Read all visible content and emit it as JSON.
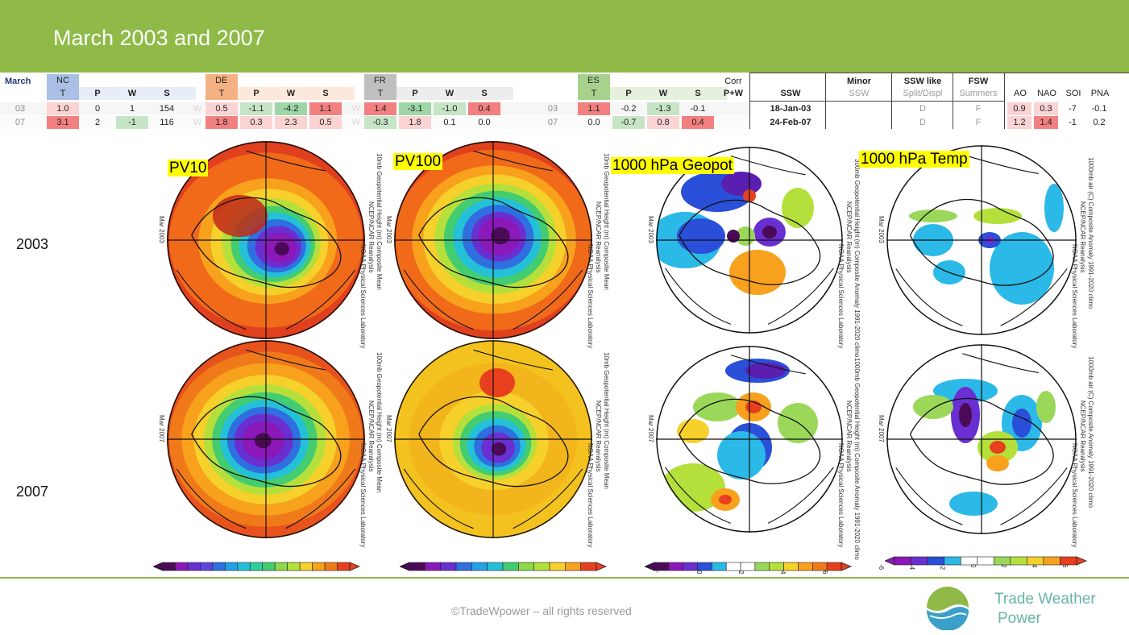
{
  "page": {
    "title": "March 2003 and 2007",
    "footer": "©TradeWpower – all rights reserved",
    "logo_line1": "Trade Weather",
    "logo_line2": "Power"
  },
  "table": {
    "month_label": "March",
    "nc": {
      "label": "NC",
      "cols": [
        "T",
        "P",
        "W",
        "S"
      ]
    },
    "de": {
      "label": "DE",
      "cols": [
        "T",
        "P",
        "W",
        "S"
      ]
    },
    "fr": {
      "label": "FR",
      "cols": [
        "T",
        "P",
        "W",
        "S"
      ]
    },
    "es": {
      "label": "ES",
      "cols": [
        "T",
        "P",
        "W",
        "S"
      ]
    },
    "w_marker": "W",
    "corr": "Corr",
    "pw": "P+W",
    "ssw_head": "SSW",
    "minor_head1": "Minor",
    "minor_head2": "SSW",
    "sswlike_head1": "SSW like",
    "sswlike_head2": "Split/Displ",
    "fsw_head1": "FSW",
    "fsw_head2": "Summers",
    "idx_cols": [
      "AO",
      "NAO",
      "SOI",
      "PNA"
    ],
    "rows": [
      {
        "year": "03",
        "nc": [
          "1.0",
          "0",
          "1",
          "154"
        ],
        "de": [
          "0.5",
          "-1.1",
          "-4.2",
          "1.1"
        ],
        "fr": [
          "1.4",
          "-3.1",
          "-1.0",
          "0.4"
        ],
        "es_year": "03",
        "es": [
          "1.1",
          "-0.2",
          "-1.3",
          "-0.1"
        ],
        "ssw": "18-Jan-03",
        "sswlike": "D",
        "fsw": "F",
        "idx": [
          "0.9",
          "0.3",
          "-7",
          "-0.1"
        ]
      },
      {
        "year": "07",
        "nc": [
          "3.1",
          "2",
          "-1",
          "116"
        ],
        "de": [
          "1.8",
          "0.3",
          "2.3",
          "0.5"
        ],
        "fr": [
          "-0.3",
          "1.8",
          "0.1",
          "0.0"
        ],
        "es_year": "07",
        "es": [
          "0.0",
          "-0.7",
          "0.8",
          "0.4"
        ],
        "ssw": "24-Feb-07",
        "sswlike": "D",
        "fsw": "F",
        "idx": [
          "1.2",
          "1.4",
          "-1",
          "0.2"
        ]
      }
    ]
  },
  "maps": {
    "titles": [
      "PV10",
      "PV100",
      "1000 hPa Geopot",
      "1000 hPa Temp"
    ],
    "years": [
      "2003",
      "2007"
    ],
    "date_2003": "Mar 2003",
    "date_2007": "Mar 2007",
    "source": "NCEP/NCAR Reanalysis",
    "lab": "NOAA Physical Sciences Laboratory",
    "pv10_var": "10mb Geopotential Height (m) Composite Mean",
    "pv10_var_2007": "100mb Geopotential Height (m) Composite Mean",
    "pv100_var": "10mb Geopotential Height (m) Composite Mean",
    "geo_var": "300mb Geopotential Height (m) Composite Anomaly 1991-2020 climo",
    "geo_var_2007": "1000mb Geopotential Height (m) Composite Anomaly 1991-2020 climo",
    "temp_var": "1000mb air (C) Composite Anomaly 1991-2020 climo",
    "colorbar_ticks_geo": [
      "-",
      "0",
      "2",
      "4",
      "6"
    ],
    "colorbar_ticks_temp": [
      "-6",
      "-4",
      "-2",
      "0",
      "2",
      "4",
      "6"
    ]
  },
  "colors": {
    "banner": "#8fba48",
    "nc_header": "#a9bfe3",
    "de_header": "#f4b183",
    "fr_header": "#bfbfbf",
    "es_header": "#a9d18e",
    "pos_strong": "#f28080",
    "pos_light": "#fbd3d3",
    "neg_light": "#c6e5c6",
    "neg_strong": "#9fd6a6",
    "logo": "#69b3a6"
  }
}
